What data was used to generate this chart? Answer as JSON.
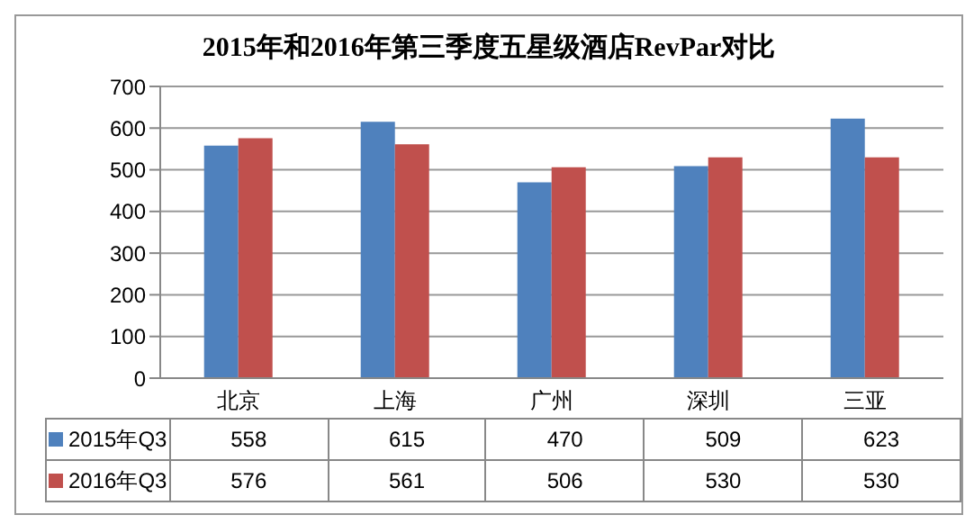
{
  "chart_data": {
    "type": "bar",
    "title": "2015年和2016年第三季度五星级酒店RevPar对比",
    "categories": [
      "北京",
      "上海",
      "广州",
      "深圳",
      "三亚"
    ],
    "series": [
      {
        "name": "2015年Q3",
        "color": "#4f81bd",
        "values": [
          558,
          615,
          470,
          509,
          623
        ]
      },
      {
        "name": "2016年Q3",
        "color": "#c0504d",
        "values": [
          576,
          561,
          506,
          530,
          530
        ]
      }
    ],
    "ylim": [
      0,
      700
    ],
    "yticks": [
      0,
      100,
      200,
      300,
      400,
      500,
      600,
      700
    ],
    "grid": "y",
    "legend": "bottom",
    "data_labels": true
  }
}
